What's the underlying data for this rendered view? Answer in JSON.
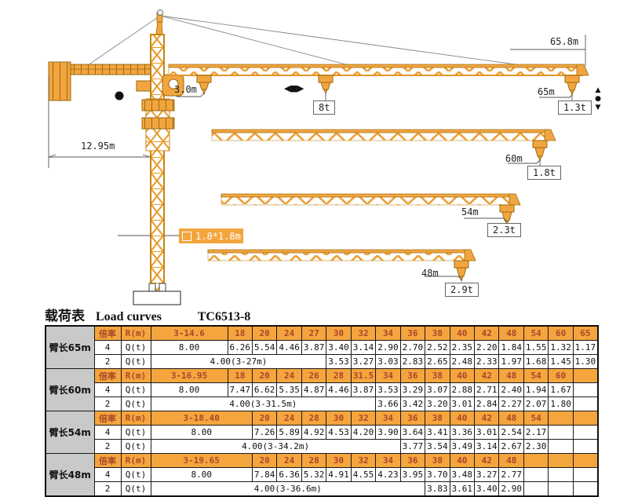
{
  "title": {
    "cn": "载荷表",
    "en": "Load  curves",
    "model": "TC6513-8"
  },
  "colors": {
    "crane_orange": "#F2A53F",
    "crane_edge": "#9A6A10",
    "table_header_bg": "#F4A53E",
    "table_header_text": "#A9472A",
    "arm_cell_bg": "#C9C9C9"
  },
  "diagram": {
    "jib_tip_length": "65.8m",
    "min_radius": "3.0m",
    "counter_jib_length": "12.95m",
    "max_hook_load": "8t",
    "mast_section": "1.8*1.8m",
    "jibs": [
      {
        "radius": "65m",
        "tip_capacity": "1.3t"
      },
      {
        "radius": "60m",
        "tip_capacity": "1.8t"
      },
      {
        "radius": "54m",
        "tip_capacity": "2.3t"
      },
      {
        "radius": "48m",
        "tip_capacity": "2.9t"
      }
    ],
    "icons": {
      "trolley_travel": "◀■▶",
      "hook_up": "▲",
      "hook_dot": "●",
      "hook_down": "▼"
    }
  },
  "table": {
    "labels": {
      "ratio": "倍率",
      "radius": "R(m)",
      "load": "Q(t)",
      "ratio4": "4",
      "ratio2": "2"
    },
    "sections": [
      {
        "arm": "臂长65m",
        "range": "3-14.6",
        "range_span": 1,
        "empty": 0,
        "radii": [
          "18",
          "20",
          "24",
          "27",
          "30",
          "32",
          "34",
          "36",
          "38",
          "40",
          "42",
          "48",
          "54",
          "60",
          "65"
        ],
        "row4_first": "8.00",
        "row4_values": [
          "6.26",
          "5.54",
          "4.46",
          "3.87",
          "3.40",
          "3.14",
          "2.90",
          "2.70",
          "2.52",
          "2.35",
          "2.20",
          "1.84",
          "1.55",
          "1.32",
          "1.17"
        ],
        "row2_merged": "4.00(3-27m)",
        "merged_span": 5,
        "row2_values": [
          "3.53",
          "3.27",
          "3.03",
          "2.83",
          "2.65",
          "2.48",
          "2.33",
          "1.97",
          "1.68",
          "1.45",
          "1.30"
        ]
      },
      {
        "arm": "臂长60m",
        "range": "3-16.95",
        "range_span": 1,
        "empty": 1,
        "radii": [
          "18",
          "20",
          "24",
          "26",
          "28",
          "31.5",
          "34",
          "36",
          "38",
          "40",
          "42",
          "48",
          "54",
          "60"
        ],
        "row4_first": "8.00",
        "row4_values": [
          "7.47",
          "6.62",
          "5.35",
          "4.87",
          "4.46",
          "3.87",
          "3.53",
          "3.29",
          "3.07",
          "2.88",
          "2.71",
          "2.40",
          "1.94",
          "1.67"
        ],
        "row2_merged": "4.00(3-31.5m)",
        "merged_span": 7,
        "row2_values": [
          "3.66",
          "3.42",
          "3.20",
          "3.01",
          "2.84",
          "2.27",
          "2.07",
          "1.80"
        ]
      },
      {
        "arm": "臂长54m",
        "range": "3-18.40",
        "range_span": 2,
        "empty": 2,
        "radii": [
          "20",
          "24",
          "28",
          "30",
          "32",
          "34",
          "36",
          "38",
          "40",
          "42",
          "48",
          "54"
        ],
        "row4_first": "8.00",
        "row4_values": [
          "7.26",
          "5.89",
          "4.92",
          "4.53",
          "4.20",
          "3.90",
          "3.64",
          "3.41",
          "3.36",
          "3.01",
          "2.54",
          "2.17"
        ],
        "row2_merged": "4.00(3-34.2m)",
        "merged_span": 8,
        "row2_values": [
          "3.77",
          "3.54",
          "3.49",
          "3.14",
          "2.67",
          "2.30"
        ]
      },
      {
        "arm": "臂长48m",
        "range": "3-19.65",
        "range_span": 2,
        "empty": 3,
        "radii": [
          "20",
          "24",
          "28",
          "30",
          "32",
          "34",
          "36",
          "38",
          "40",
          "42",
          "48"
        ],
        "row4_first": "8.00",
        "row4_values": [
          "7.84",
          "6.36",
          "5.32",
          "4.91",
          "4.55",
          "4.23",
          "3.95",
          "3.70",
          "3.48",
          "3.27",
          "2.77"
        ],
        "row2_merged": "4.00(3-36.6m)",
        "merged_span": 9,
        "row2_values": [
          "3.83",
          "3.61",
          "3.40",
          "2.90"
        ]
      }
    ]
  }
}
